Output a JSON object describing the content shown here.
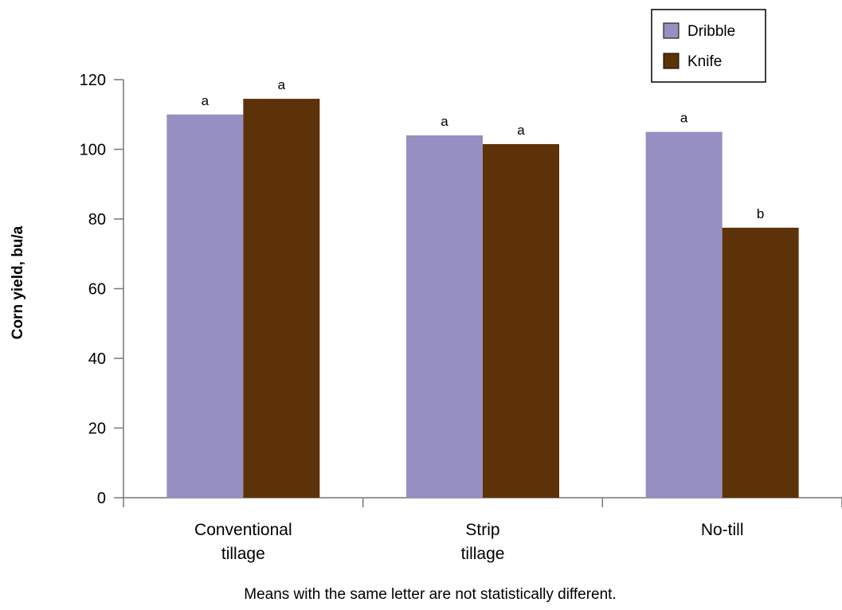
{
  "chart_data": {
    "type": "bar",
    "categories": [
      [
        "Conventional",
        "tillage"
      ],
      [
        "Strip",
        "tillage"
      ],
      [
        "No-till"
      ]
    ],
    "series": [
      {
        "name": "Dribble",
        "color": "#968fc1",
        "values": [
          110,
          104,
          105
        ],
        "letters": [
          "a",
          "a",
          "a"
        ]
      },
      {
        "name": "Knife",
        "color": "#5e3208",
        "values": [
          114.5,
          101.5,
          77.5
        ],
        "letters": [
          "a",
          "a",
          "b"
        ]
      }
    ],
    "ylabel": "Corn yield, bu/a",
    "xlabel": "",
    "ylim": [
      0,
      120
    ],
    "yticks": [
      0,
      20,
      40,
      60,
      80,
      100,
      120
    ],
    "legend_position": "top-right",
    "grid": false
  },
  "footnote": "Means with the same letter are not statistically different."
}
